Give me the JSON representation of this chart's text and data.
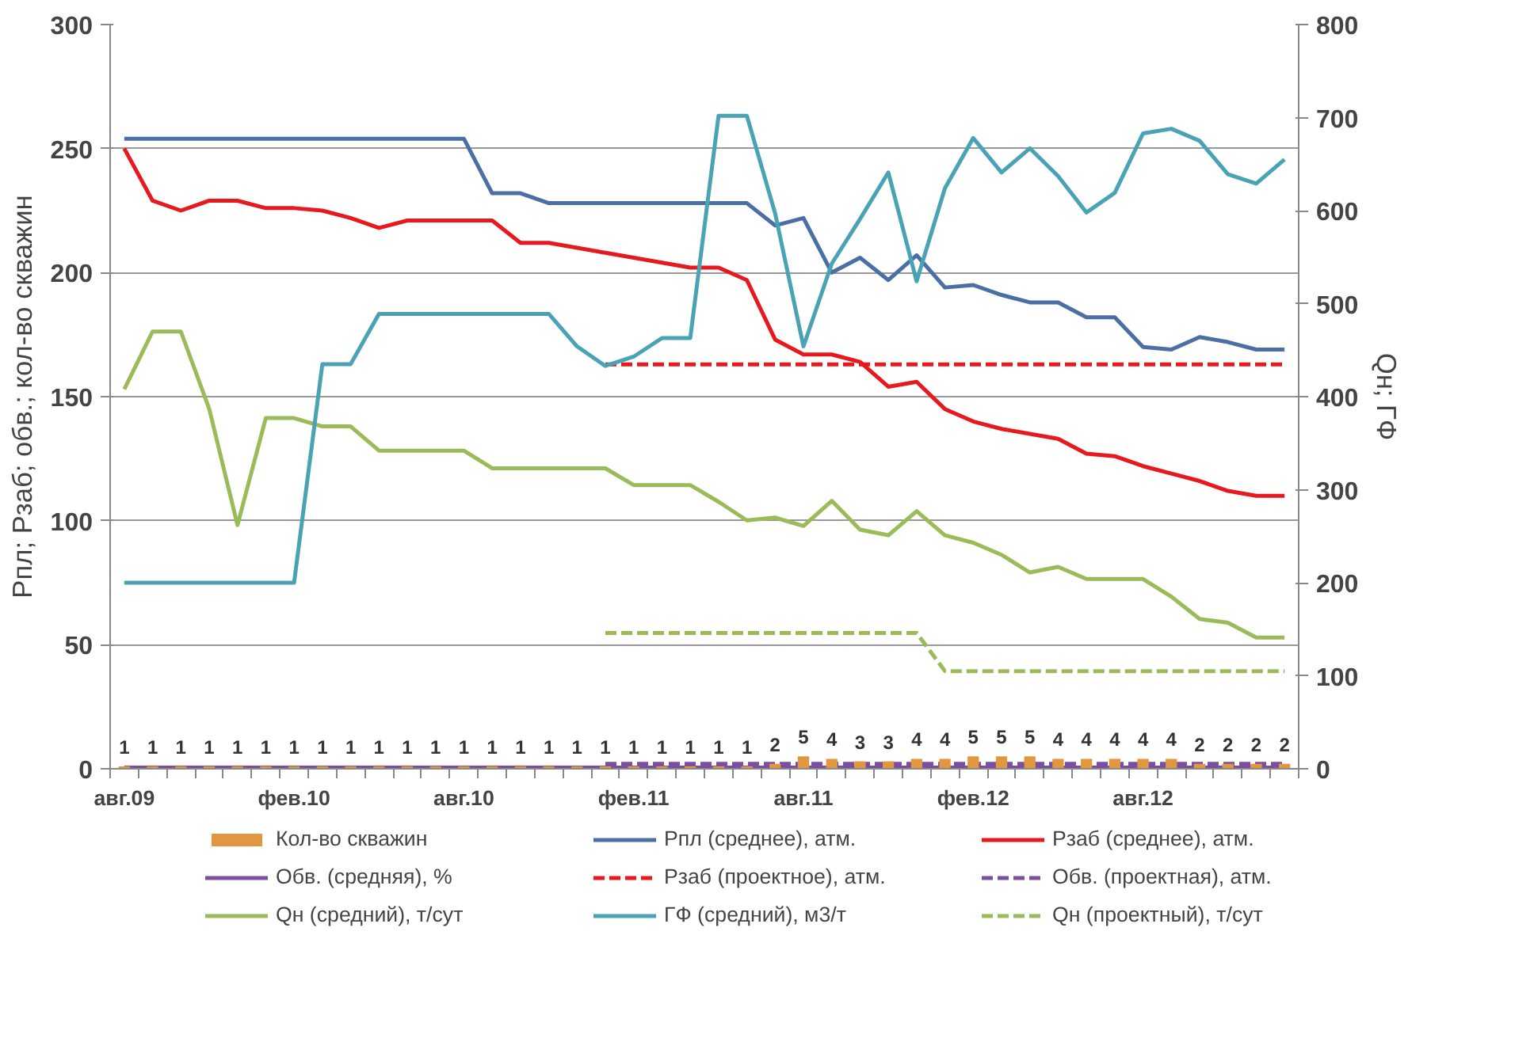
{
  "chart_data": {
    "type": "line",
    "ylabel": "Рпл; Рзаб; обв.; кол-во скважин",
    "y2label": "Qн; ГФ",
    "categories": [
      "авг.09",
      null,
      null,
      null,
      null,
      null,
      "фев.10",
      null,
      null,
      null,
      null,
      null,
      "авг.10",
      null,
      null,
      null,
      null,
      null,
      "фев.11",
      null,
      null,
      null,
      null,
      null,
      "авг.11",
      null,
      null,
      null,
      null,
      null,
      "фев.12",
      null,
      null,
      null,
      null,
      null,
      "авг.12",
      null,
      null,
      null,
      null,
      null
    ],
    "ylim": [
      0,
      300
    ],
    "yticks": [
      0,
      50,
      100,
      150,
      200,
      250,
      300
    ],
    "y2lim": [
      0,
      800
    ],
    "y2ticks": [
      0,
      100,
      200,
      300,
      400,
      500,
      600,
      700,
      800
    ],
    "grid": "y",
    "legend": "bottom",
    "series": [
      {
        "name": "Кол-во скважин",
        "type": "bar",
        "color": "#e39640",
        "data_labels": true,
        "values": [
          1,
          1,
          1,
          1,
          1,
          1,
          1,
          1,
          1,
          1,
          1,
          1,
          1,
          1,
          1,
          1,
          1,
          1,
          1,
          1,
          1,
          1,
          1,
          2,
          5,
          4,
          3,
          3,
          4,
          4,
          5,
          5,
          5,
          4,
          4,
          4,
          4,
          4,
          2,
          2,
          2,
          2
        ]
      },
      {
        "name": "Рпл (среднее), атм.",
        "type": "line",
        "color": "#4a6fa5",
        "line_style": "solid",
        "values": [
          254,
          254,
          254,
          254,
          254,
          254,
          254,
          254,
          254,
          254,
          254,
          254,
          254,
          232,
          232,
          228,
          228,
          228,
          228,
          228,
          228,
          228,
          228,
          219,
          222,
          200,
          206,
          197,
          207,
          194,
          195,
          191,
          188,
          188,
          182,
          182,
          170,
          169,
          174,
          172,
          169,
          169
        ]
      },
      {
        "name": "Рзаб (среднее), атм.",
        "type": "line",
        "color": "#e8191e",
        "line_style": "solid",
        "values": [
          250,
          229,
          225,
          229,
          229,
          226,
          226,
          225,
          222,
          218,
          221,
          221,
          221,
          221,
          212,
          212,
          210,
          208,
          206,
          204,
          202,
          202,
          197,
          173,
          167,
          167,
          164,
          154,
          156,
          145,
          140,
          137,
          135,
          133,
          127,
          126,
          122,
          119,
          116,
          112,
          110,
          110
        ]
      },
      {
        "name": "Обв. (средняя), %",
        "type": "line",
        "color": "#7a4fa0",
        "line_style": "solid",
        "values": [
          0.5,
          0.5,
          0.5,
          0.5,
          0.5,
          0.5,
          0.5,
          0.5,
          0.5,
          0.5,
          0.5,
          0.5,
          0.5,
          0.5,
          0.5,
          0.5,
          0.5,
          0.5,
          0.5,
          0.5,
          0.5,
          0.5,
          0.5,
          0.5,
          0.5,
          0.5,
          0.5,
          0.5,
          0.5,
          0.5,
          0.5,
          0.5,
          0.5,
          0.5,
          0.5,
          0.5,
          0.5,
          0.5,
          0.5,
          0.5,
          0.5,
          0.5
        ]
      },
      {
        "name": "Рзаб (проектное), атм.",
        "type": "line",
        "color": "#e8191e",
        "line_style": "dashed",
        "values": [
          null,
          null,
          null,
          null,
          null,
          null,
          null,
          null,
          null,
          null,
          null,
          null,
          null,
          null,
          null,
          null,
          null,
          163,
          163,
          163,
          163,
          163,
          163,
          163,
          163,
          163,
          163,
          163,
          163,
          163,
          163,
          163,
          163,
          163,
          163,
          163,
          163,
          163,
          163,
          163,
          163,
          163
        ]
      },
      {
        "name": "Обв. (проектная), атм.",
        "type": "line",
        "color": "#7a4fa0",
        "line_style": "dashed",
        "values": [
          null,
          null,
          null,
          null,
          null,
          null,
          null,
          null,
          null,
          null,
          null,
          null,
          null,
          null,
          null,
          null,
          null,
          2,
          2,
          2,
          2,
          2,
          2,
          2,
          2,
          2,
          2,
          2,
          2,
          2,
          2,
          2,
          2,
          2,
          2,
          2,
          2,
          2,
          2,
          2,
          2,
          2
        ]
      },
      {
        "name": "Qн (средний), т/сут",
        "type": "line",
        "axis": "y2",
        "color": "#9bbb59",
        "line_style": "solid",
        "values": [
          408,
          470,
          470,
          387,
          262,
          377,
          377,
          368,
          368,
          342,
          342,
          342,
          342,
          323,
          323,
          323,
          323,
          323,
          305,
          305,
          305,
          287,
          267,
          270,
          261,
          288,
          257,
          251,
          277,
          251,
          243,
          230,
          211,
          217,
          204,
          204,
          204,
          185,
          161,
          157,
          141,
          141
        ]
      },
      {
        "name": "ГФ (средний), м3/т",
        "type": "line",
        "axis": "y2",
        "color": "#4aa3b5",
        "line_style": "solid",
        "values": [
          200,
          200,
          200,
          200,
          200,
          200,
          200,
          435,
          435,
          489,
          489,
          489,
          489,
          489,
          489,
          489,
          454,
          433,
          443,
          463,
          463,
          702,
          702,
          597,
          454,
          543,
          591,
          641,
          524,
          624,
          678,
          641,
          667,
          637,
          598,
          619,
          683,
          688,
          675,
          639,
          629,
          655
        ]
      },
      {
        "name": "Qн (проектный), т/сут",
        "type": "line",
        "axis": "y2",
        "color": "#9bbb59",
        "line_style": "dashed",
        "values": [
          null,
          null,
          null,
          null,
          null,
          null,
          null,
          null,
          null,
          null,
          null,
          null,
          null,
          null,
          null,
          null,
          null,
          146,
          146,
          146,
          146,
          146,
          146,
          146,
          146,
          146,
          146,
          146,
          146,
          105,
          105,
          105,
          105,
          105,
          105,
          105,
          105,
          105,
          105,
          105,
          105,
          105
        ]
      }
    ]
  }
}
